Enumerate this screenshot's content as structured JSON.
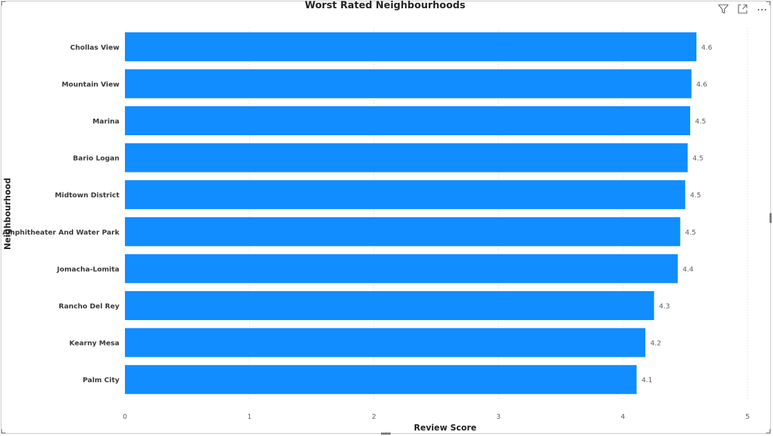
{
  "toolbar": {
    "filter_icon": "filter-icon",
    "focus_icon": "focus-mode-icon",
    "more_icon": "more-options-icon"
  },
  "chart_data": {
    "type": "bar",
    "orientation": "horizontal",
    "title": "Worst Rated Neighbourhoods",
    "xlabel": "Review Score",
    "ylabel": "Neighbourhood",
    "xlim": [
      0,
      5
    ],
    "xticks": [
      0,
      1,
      2,
      3,
      4,
      5
    ],
    "grid": true,
    "bar_color": "#118DFF",
    "categories": [
      "Chollas View",
      "Mountain View",
      "Marina",
      "Bario Logan",
      "Midtown District",
      "Amphitheater And Water Park",
      "Jomacha-Lomita",
      "Rancho Del Rey",
      "Kearny Mesa",
      "Palm City"
    ],
    "values": [
      4.59,
      4.55,
      4.54,
      4.52,
      4.5,
      4.46,
      4.44,
      4.25,
      4.18,
      4.11
    ],
    "data_labels": [
      "4.6",
      "4.6",
      "4.5",
      "4.5",
      "4.5",
      "4.5",
      "4.4",
      "4.3",
      "4.2",
      "4.1"
    ]
  }
}
